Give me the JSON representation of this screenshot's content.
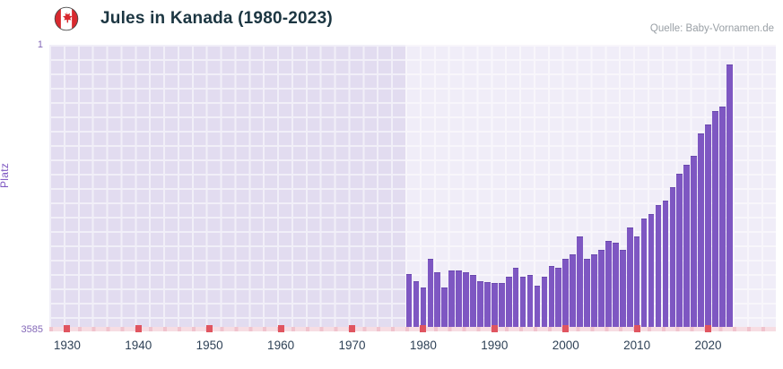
{
  "header": {
    "title": "Jules in Kanada (1980-2023)",
    "source": "Quelle: Baby-Vornamen.de"
  },
  "chart_data": {
    "type": "bar",
    "title": "Jules in Kanada (1980-2023)",
    "ylabel": "Platz",
    "y_axis": {
      "top_label": "1",
      "bottom_label": "3585",
      "min": 1,
      "max": 3585,
      "inverted": true
    },
    "x_axis": {
      "domain": [
        1927.5,
        2029.5
      ],
      "tick_years": [
        1930,
        1940,
        1950,
        1960,
        1970,
        1980,
        1990,
        2000,
        2010,
        2020
      ],
      "tick_labels": [
        "1930",
        "1940",
        "1950",
        "1960",
        "1970",
        "1980",
        "1990",
        "2000",
        "2010",
        "2020"
      ]
    },
    "no_data_band_end_year": 1977.5,
    "years": [
      1978,
      1979,
      1980,
      1981,
      1982,
      1983,
      1984,
      1985,
      1986,
      1987,
      1988,
      1989,
      1990,
      1991,
      1992,
      1993,
      1994,
      1995,
      1996,
      1997,
      1998,
      1999,
      2000,
      2001,
      2002,
      2003,
      2004,
      2005,
      2006,
      2007,
      2008,
      2009,
      2010,
      2011,
      2012,
      2013,
      2014,
      2015,
      2016,
      2017,
      2018,
      2019,
      2020,
      2021,
      2022,
      2023
    ],
    "ranks": [
      2879,
      2969,
      3047,
      2689,
      2857,
      3047,
      2834,
      2834,
      2857,
      2890,
      2969,
      2980,
      2991,
      2991,
      2913,
      2801,
      2913,
      2890,
      3025,
      2913,
      2779,
      2801,
      2689,
      2633,
      2409,
      2689,
      2633,
      2577,
      2465,
      2487,
      2577,
      2297,
      2409,
      2185,
      2129,
      2017,
      1961,
      1793,
      1625,
      1513,
      1401,
      1121,
      1009,
      841,
      785,
      259
    ],
    "colors": {
      "bar": "#7e57c2",
      "plot_background": "#f0edf8",
      "no_data_background": "#e2dcf0",
      "grid": "#ffffff",
      "x_tick_red": "#e05560",
      "axis_band_pink": "#f7dde3",
      "title_text": "#1c3642",
      "x_label_text": "#2e4156",
      "y_label_text": "#7e57c2",
      "source_text": "#9aa0a6"
    }
  }
}
